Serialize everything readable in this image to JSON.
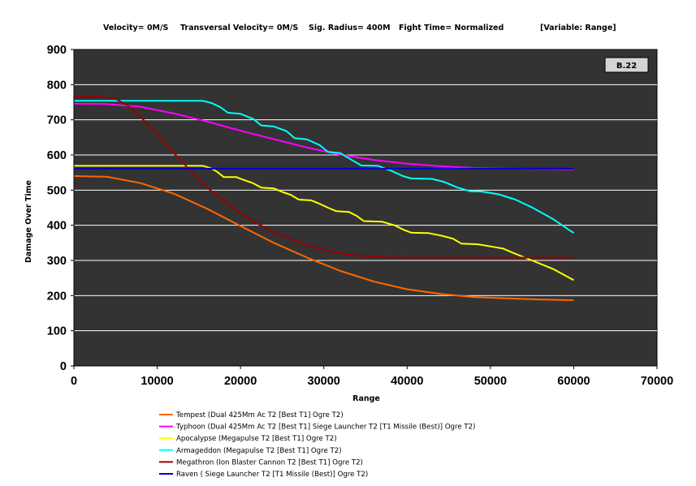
{
  "header": {
    "velocity": "Velocity= 0M/S",
    "transversal": "Transversal Velocity= 0M/S",
    "sig_radius": "Sig. Radius= 400M",
    "fight_time": "Fight Time= Normalized",
    "variable": "[Variable: Range]"
  },
  "badge": "B.22",
  "colors": {
    "plot_bg": "#333333",
    "grid": "#ffffff",
    "page_bg": "#ffffff"
  },
  "chart_data": {
    "type": "line",
    "xlabel": "Range",
    "ylabel": "Damage Over Time",
    "xlim": [
      0,
      70000
    ],
    "ylim": [
      0,
      900
    ],
    "xticks": [
      0,
      10000,
      20000,
      30000,
      40000,
      50000,
      60000,
      70000
    ],
    "yticks": [
      0,
      100,
      200,
      300,
      400,
      500,
      600,
      700,
      800,
      900
    ],
    "grid": "horizontal",
    "legend_position": "bottom",
    "series": [
      {
        "name": "Tempest (Dual 425Mm Ac T2 [Best T1] Ogre T2)",
        "color": "#ff6600",
        "points": [
          [
            0,
            540
          ],
          [
            4000,
            538
          ],
          [
            8000,
            520
          ],
          [
            12000,
            490
          ],
          [
            16000,
            447
          ],
          [
            20000,
            398
          ],
          [
            24000,
            350
          ],
          [
            28000,
            308
          ],
          [
            32000,
            270
          ],
          [
            36000,
            240
          ],
          [
            40000,
            218
          ],
          [
            44000,
            205
          ],
          [
            48000,
            196
          ],
          [
            52000,
            192
          ],
          [
            56000,
            189
          ],
          [
            60000,
            187
          ]
        ]
      },
      {
        "name": "Typhoon (Dual 425Mm Ac T2 [Best T1] Siege Launcher T2 [T1 Missile (Best)] Ogre T2)",
        "color": "#ff00ff",
        "points": [
          [
            0,
            746
          ],
          [
            4000,
            745
          ],
          [
            8000,
            737
          ],
          [
            12000,
            718
          ],
          [
            16000,
            695
          ],
          [
            20000,
            669
          ],
          [
            24000,
            645
          ],
          [
            28000,
            621
          ],
          [
            32000,
            601
          ],
          [
            36000,
            586
          ],
          [
            40000,
            575
          ],
          [
            44000,
            568
          ],
          [
            48000,
            563
          ],
          [
            52000,
            561
          ],
          [
            56000,
            560
          ],
          [
            60000,
            559
          ]
        ]
      },
      {
        "name": "Apocalypse (Megapulse T2 [Best T1] Ogre T2)",
        "color": "#ffff00",
        "points": [
          [
            0,
            569
          ],
          [
            15500,
            569
          ],
          [
            16500,
            562
          ],
          [
            17200,
            552
          ],
          [
            18000,
            537
          ],
          [
            19500,
            537
          ],
          [
            20500,
            528
          ],
          [
            21500,
            520
          ],
          [
            22500,
            507
          ],
          [
            24000,
            505
          ],
          [
            25000,
            495
          ],
          [
            26000,
            487
          ],
          [
            27000,
            473
          ],
          [
            28500,
            471
          ],
          [
            29500,
            461
          ],
          [
            30500,
            450
          ],
          [
            31500,
            440
          ],
          [
            33000,
            438
          ],
          [
            34000,
            426
          ],
          [
            34800,
            412
          ],
          [
            37000,
            410
          ],
          [
            38500,
            400
          ],
          [
            39500,
            388
          ],
          [
            40500,
            379
          ],
          [
            42500,
            378
          ],
          [
            44000,
            371
          ],
          [
            45500,
            362
          ],
          [
            46500,
            348
          ],
          [
            48500,
            346
          ],
          [
            50000,
            340
          ],
          [
            51500,
            334
          ],
          [
            53000,
            319
          ],
          [
            55000,
            300
          ],
          [
            57500,
            276
          ],
          [
            60000,
            244
          ]
        ]
      },
      {
        "name": "Armageddon (Megapulse T2 [Best T1] Ogre T2)",
        "color": "#00ffff",
        "points": [
          [
            0,
            754
          ],
          [
            15500,
            754
          ],
          [
            16500,
            748
          ],
          [
            17500,
            737
          ],
          [
            18500,
            720
          ],
          [
            20000,
            717
          ],
          [
            21500,
            703
          ],
          [
            22500,
            684
          ],
          [
            24000,
            681
          ],
          [
            25500,
            668
          ],
          [
            26500,
            648
          ],
          [
            28000,
            644
          ],
          [
            29500,
            628
          ],
          [
            30500,
            609
          ],
          [
            32000,
            605
          ],
          [
            33200,
            588
          ],
          [
            34500,
            570
          ],
          [
            36500,
            569
          ],
          [
            38000,
            556
          ],
          [
            39500,
            540
          ],
          [
            40500,
            533
          ],
          [
            43000,
            532
          ],
          [
            44500,
            523
          ],
          [
            46000,
            508
          ],
          [
            47500,
            497
          ],
          [
            49000,
            496
          ],
          [
            51000,
            488
          ],
          [
            53000,
            473
          ],
          [
            55000,
            451
          ],
          [
            57500,
            418
          ],
          [
            60000,
            378
          ]
        ]
      },
      {
        "name": "Megathron (Ion Blaster Cannon T2 [Best T1] Ogre T2)",
        "color": "#990000",
        "points": [
          [
            0,
            765
          ],
          [
            3000,
            766
          ],
          [
            5000,
            760
          ],
          [
            6500,
            740
          ],
          [
            8000,
            708
          ],
          [
            10000,
            660
          ],
          [
            12000,
            605
          ],
          [
            14000,
            555
          ],
          [
            16000,
            507
          ],
          [
            18000,
            470
          ],
          [
            20000,
            435
          ],
          [
            22000,
            405
          ],
          [
            24000,
            380
          ],
          [
            26000,
            360
          ],
          [
            28000,
            343
          ],
          [
            30000,
            330
          ],
          [
            32000,
            320
          ],
          [
            34000,
            314
          ],
          [
            36000,
            311
          ],
          [
            38000,
            309
          ],
          [
            40000,
            308
          ],
          [
            50000,
            308
          ],
          [
            60000,
            308
          ]
        ]
      },
      {
        "name": "Raven ( Siege Launcher T2 [T1 Missile (Best)] Ogre T2)",
        "color": "#0000cc",
        "points": [
          [
            0,
            561
          ],
          [
            60000,
            561
          ]
        ]
      }
    ]
  }
}
